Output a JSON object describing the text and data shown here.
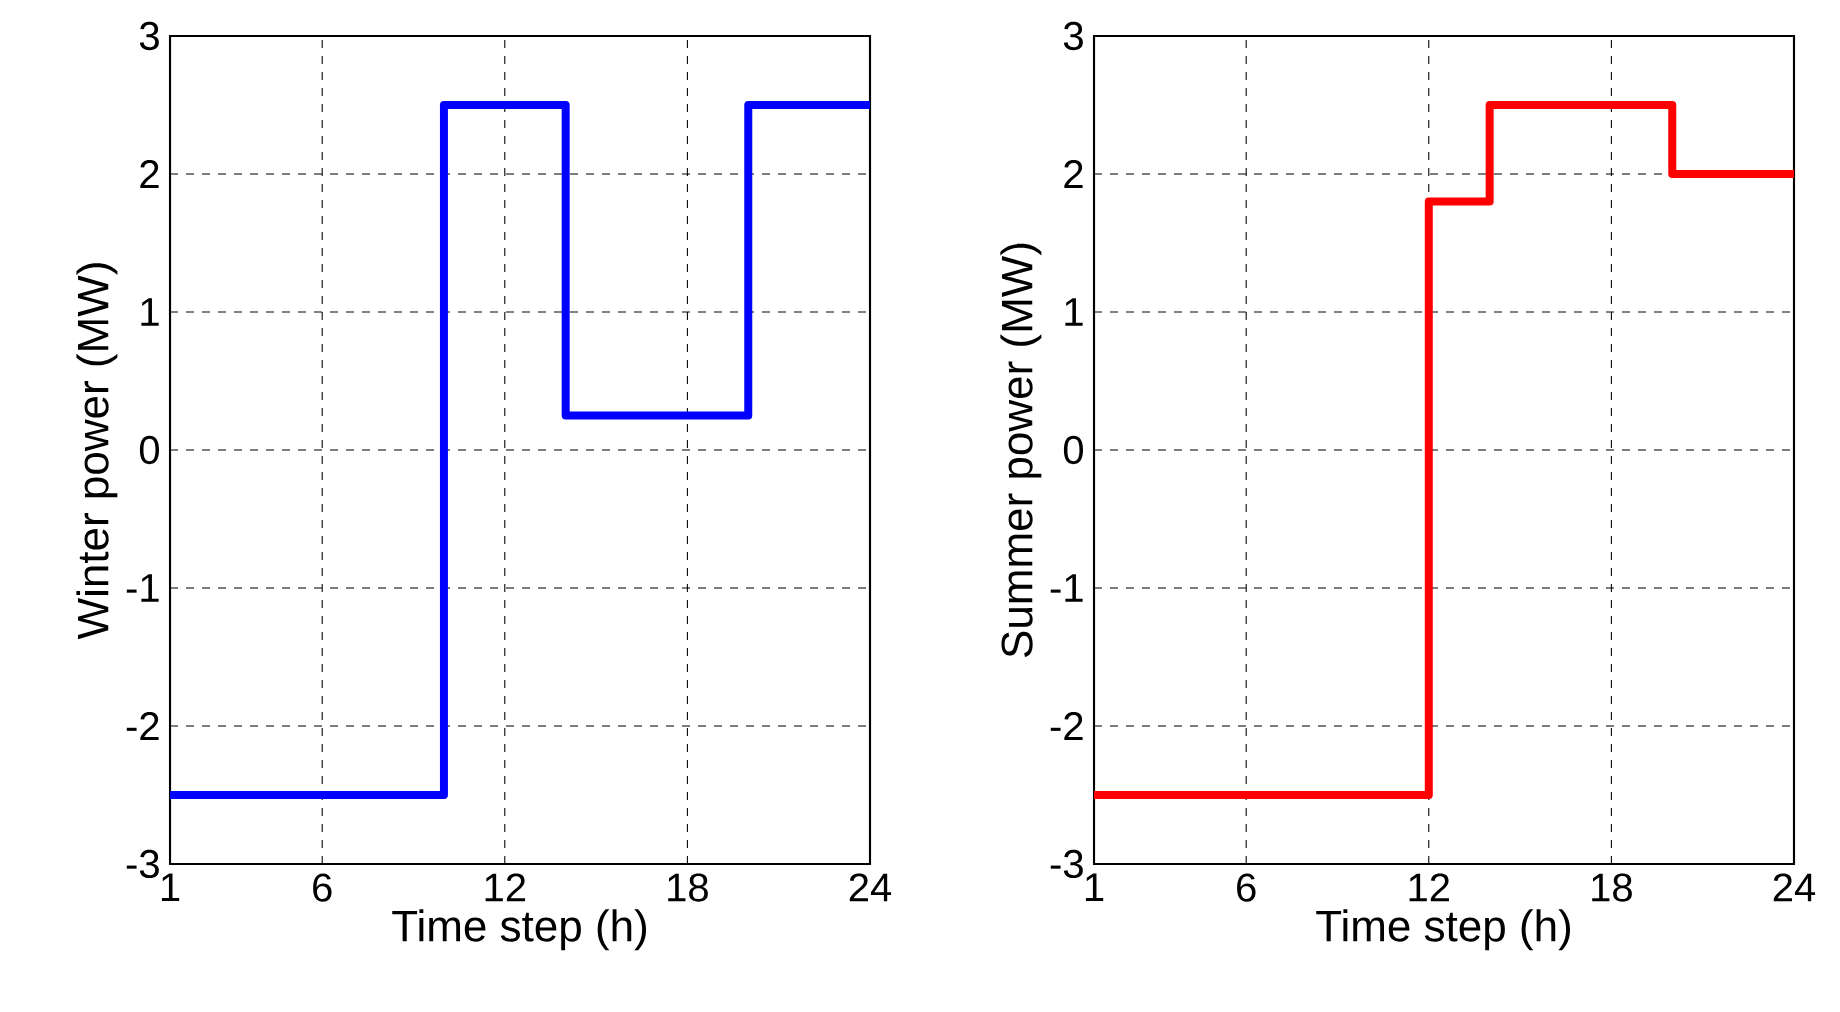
{
  "chart_data": [
    {
      "type": "step",
      "xlabel": "Time step (h)",
      "ylabel": "Winter power (MW)",
      "x": [
        1,
        10,
        14,
        20,
        24
      ],
      "series": [
        {
          "color": "#0000ff",
          "values": [
            -2.5,
            2.5,
            0.25,
            2.5,
            2.5
          ]
        }
      ],
      "xlim": [
        1,
        24
      ],
      "ylim": [
        -3,
        3
      ],
      "xticks": [
        1,
        6,
        12,
        18,
        24
      ],
      "yticks": [
        -3,
        -2,
        -1,
        0,
        1,
        2,
        3
      ],
      "grid": true,
      "line_style": "solid"
    },
    {
      "type": "step",
      "xlabel": "Time step (h)",
      "ylabel": "Summer power (MW)",
      "x": [
        1,
        12,
        14,
        20,
        24
      ],
      "series": [
        {
          "color": "#ff0000",
          "values": [
            -2.5,
            1.8,
            2.5,
            2.0,
            2.0
          ]
        }
      ],
      "xlim": [
        1,
        24
      ],
      "ylim": [
        -3,
        3
      ],
      "xticks": [
        1,
        6,
        12,
        18,
        24
      ],
      "yticks": [
        -3,
        -2,
        -1,
        0,
        1,
        2,
        3
      ],
      "grid": true,
      "line_style": "solid"
    }
  ]
}
